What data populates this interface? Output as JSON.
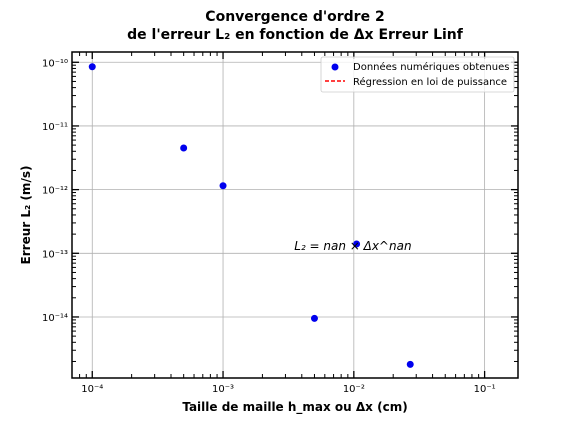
{
  "chart_data": {
    "type": "scatter",
    "title_line1": "Convergence d'ordre 2",
    "title_line2": "de l'erreur L₂ en fonction de Δx Erreur Linf",
    "xlabel": "Taille de maille h_max ou Δx (cm)",
    "ylabel": "Erreur L₂ (m/s)",
    "x_scale": "log",
    "y_scale": "log",
    "xlim": [
      7e-05,
      0.18
    ],
    "ylim": [
      1.1e-15,
      1.45e-10
    ],
    "grid": true,
    "legend_position": "top-right",
    "x_ticks": [
      {
        "value": 0.0001,
        "label": "10⁻⁴"
      },
      {
        "value": 0.001,
        "label": "10⁻³"
      },
      {
        "value": 0.01,
        "label": "10⁻²"
      },
      {
        "value": 0.1,
        "label": "10⁻¹"
      }
    ],
    "y_ticks": [
      {
        "value": 1e-10,
        "label": "10⁻¹⁰"
      },
      {
        "value": 1e-11,
        "label": "10⁻¹¹"
      },
      {
        "value": 1e-12,
        "label": "10⁻¹²"
      },
      {
        "value": 1e-13,
        "label": "10⁻¹³"
      },
      {
        "value": 1e-14,
        "label": "10⁻¹⁴"
      }
    ],
    "series": [
      {
        "name": "Données numériques obtenues",
        "kind": "scatter",
        "color": "#0000ee",
        "x": [
          0.0001,
          0.0005,
          0.001,
          0.005,
          0.0105,
          0.027
        ],
        "y": [
          8.5e-11,
          4.5e-12,
          1.15e-12,
          9.5e-15,
          1.4e-13,
          1.8e-15
        ]
      },
      {
        "name": "Régression en loi de puissance",
        "kind": "line",
        "color": "#ff0000",
        "x": [],
        "y": []
      }
    ],
    "annotation": {
      "text": "L₂ = nan × Δx^nan",
      "x": 0.0035,
      "y": 1.3e-13
    }
  }
}
